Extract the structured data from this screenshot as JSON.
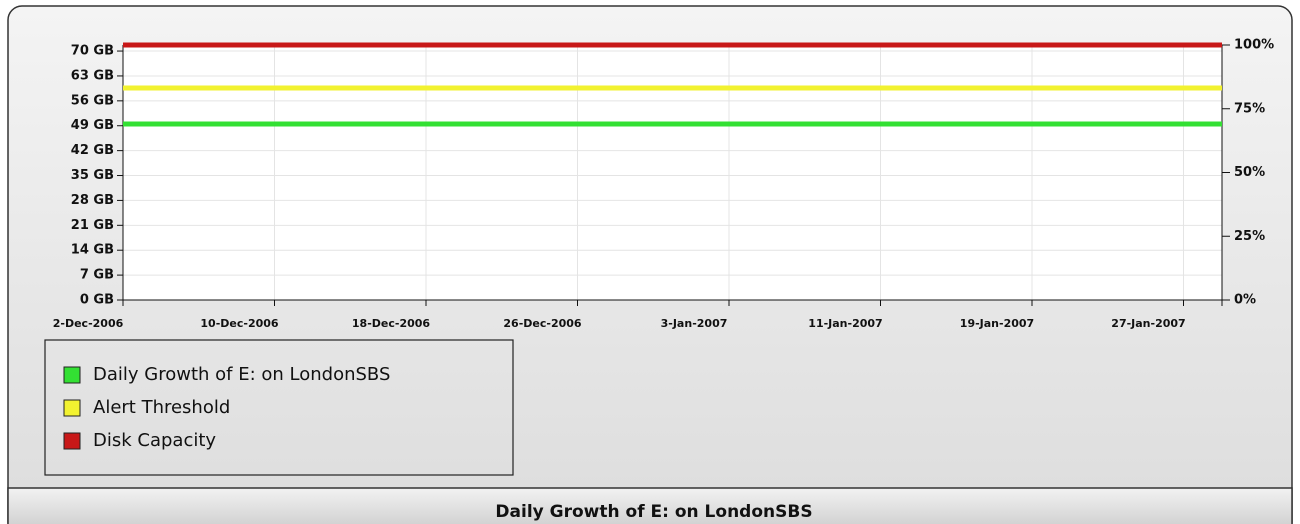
{
  "chart_data": {
    "type": "line",
    "title": "Daily Growth of E: on LondonSBS",
    "categories": [
      "2-Dec-2006",
      "10-Dec-2006",
      "18-Dec-2006",
      "26-Dec-2006",
      "3-Jan-2007",
      "11-Jan-2007",
      "19-Jan-2007",
      "27-Jan-2007",
      null
    ],
    "series": [
      {
        "name": "Daily Growth of E: on LondonSBS",
        "color": "#33e033",
        "values": [
          49.5,
          49.5,
          49.5,
          49.5,
          49.5,
          49.5,
          49.5,
          49.5,
          49.5
        ]
      },
      {
        "name": "Alert Threshold",
        "color": "#f2f230",
        "values": [
          59.6,
          59.6,
          59.6,
          59.6,
          59.6,
          59.6,
          59.6,
          59.6,
          59.6
        ]
      },
      {
        "name": "Disk Capacity",
        "color": "#c81818",
        "values": [
          71.7,
          71.7,
          71.7,
          71.7,
          71.7,
          71.7,
          71.7,
          71.7,
          71.7
        ]
      }
    ],
    "ylim": [
      0,
      71.7
    ],
    "yticks": [
      {
        "value": 0,
        "label": "0 GB"
      },
      {
        "value": 7,
        "label": "7 GB"
      },
      {
        "value": 14,
        "label": "14 GB"
      },
      {
        "value": 21,
        "label": "21 GB"
      },
      {
        "value": 28,
        "label": "28 GB"
      },
      {
        "value": 35,
        "label": "35 GB"
      },
      {
        "value": 42,
        "label": "42 GB"
      },
      {
        "value": 49,
        "label": "49 GB"
      },
      {
        "value": 56,
        "label": "56 GB"
      },
      {
        "value": 63,
        "label": "63 GB"
      },
      {
        "value": 70,
        "label": "70 GB"
      }
    ],
    "y2lim": [
      0,
      100
    ],
    "y2ticks": [
      {
        "value": 0,
        "label": "0%"
      },
      {
        "value": 25,
        "label": "25%"
      },
      {
        "value": 50,
        "label": "50%"
      },
      {
        "value": 75,
        "label": "75%"
      },
      {
        "value": 100,
        "label": "100%"
      }
    ],
    "grid": true,
    "legend": "bottom-left"
  }
}
